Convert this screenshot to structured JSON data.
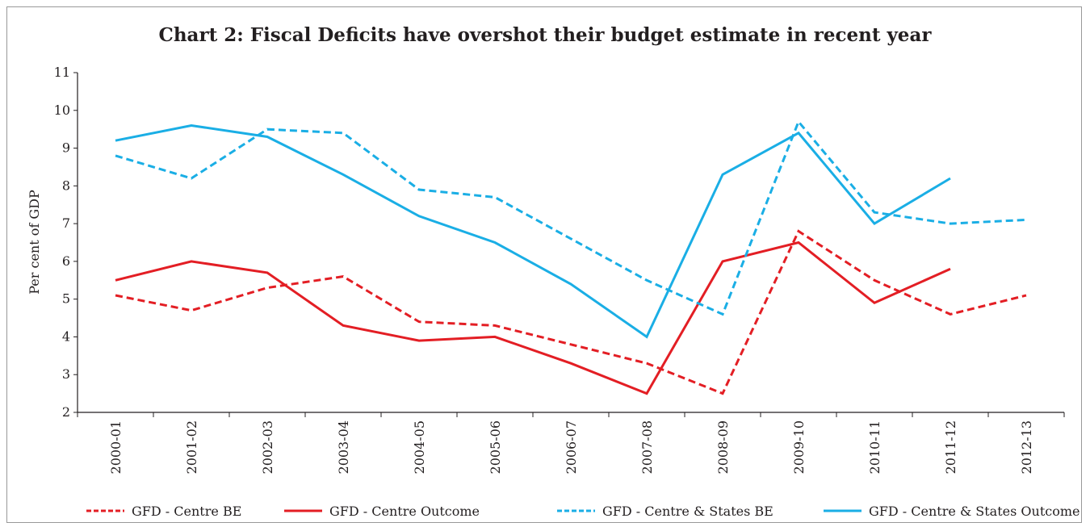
{
  "chart_data": {
    "type": "line",
    "title": "Chart 2: Fiscal Deficits have overshot their budget estimate in recent year",
    "xlabel": "",
    "ylabel": "Per cent of GDP",
    "ylim": [
      2,
      11
    ],
    "yticks": [
      "2",
      "3",
      "4",
      "5",
      "6",
      "7",
      "8",
      "9",
      "10",
      "11"
    ],
    "grid": false,
    "legend_position": "bottom",
    "categories": [
      "2000-01",
      "2001-02",
      "2002-03",
      "2003-04",
      "2004-05",
      "2005-06",
      "2006-07",
      "2007-08",
      "2008-09",
      "2009-10",
      "2010-11",
      "2011-12",
      "2012-13"
    ],
    "series": [
      {
        "name": "GFD - Centre BE",
        "color": "#e31e24",
        "dash": "dashed",
        "values": [
          5.1,
          4.7,
          5.3,
          5.6,
          4.4,
          4.3,
          3.8,
          3.3,
          2.5,
          6.8,
          5.5,
          4.6,
          5.1
        ]
      },
      {
        "name": "GFD - Centre Outcome",
        "color": "#e31e24",
        "dash": "solid",
        "values": [
          5.5,
          6.0,
          5.7,
          4.3,
          3.9,
          4.0,
          3.3,
          2.5,
          6.0,
          6.5,
          4.9,
          5.8,
          null
        ]
      },
      {
        "name": "GFD - Centre & States BE",
        "color": "#1aaee5",
        "dash": "dashed",
        "values": [
          8.8,
          8.2,
          9.5,
          9.4,
          7.9,
          7.7,
          6.6,
          5.5,
          4.6,
          9.7,
          7.3,
          7.0,
          7.1
        ]
      },
      {
        "name": "GFD - Centre & States Outcome",
        "color": "#1aaee5",
        "dash": "solid",
        "values": [
          9.2,
          9.6,
          9.3,
          8.3,
          7.2,
          6.5,
          5.4,
          4.0,
          8.3,
          9.4,
          7.0,
          8.2,
          null
        ]
      }
    ]
  }
}
